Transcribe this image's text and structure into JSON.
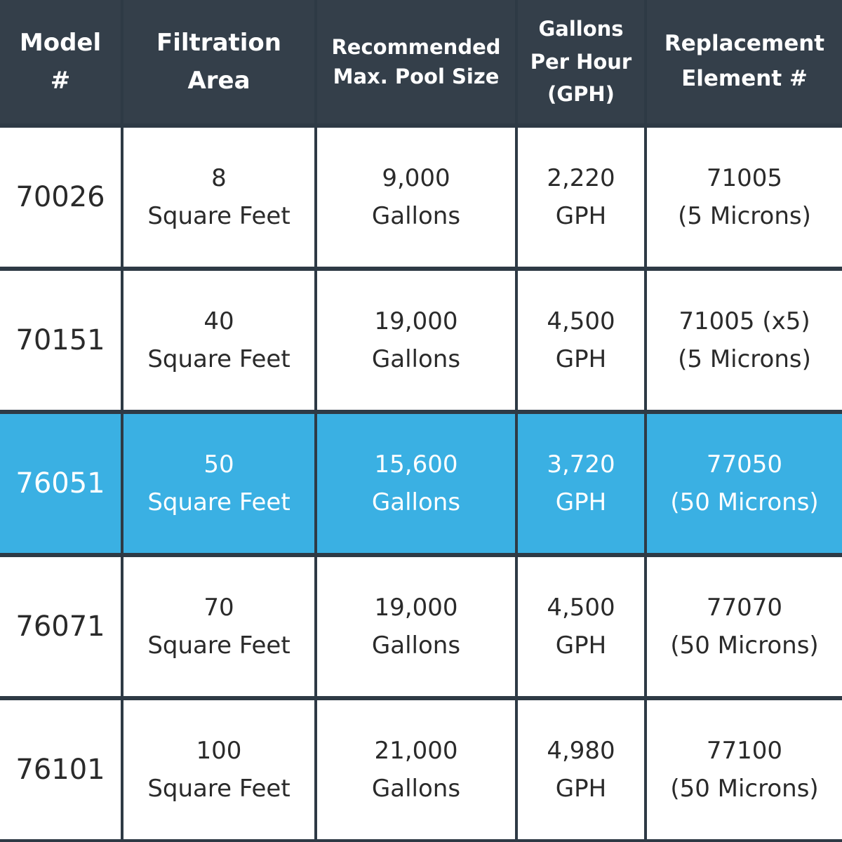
{
  "colors": {
    "header_bg": "#343f4a",
    "border": "#2e3a45",
    "highlight": "#3ab0e3",
    "cell_bg": "#ffffff",
    "text": "#2a2a2a"
  },
  "headers": [
    {
      "line1": "Model",
      "line2": "#"
    },
    {
      "line1": "Filtration",
      "line2": "Area"
    },
    {
      "line1": "Recommended",
      "line2": "Max. Pool Size"
    },
    {
      "line1": "Gallons",
      "line2": "Per Hour",
      "line3": "(GPH)"
    },
    {
      "line1": "Replacement",
      "line2": "Element #"
    }
  ],
  "rows": [
    {
      "model": "70026",
      "area": {
        "value": "8",
        "unit": "Square Feet"
      },
      "pool": {
        "value": "9,000",
        "unit": "Gallons"
      },
      "gph": {
        "value": "2,220",
        "unit": "GPH"
      },
      "element": {
        "value": "71005",
        "note": "(5 Microns)"
      },
      "highlighted": false
    },
    {
      "model": "70151",
      "area": {
        "value": "40",
        "unit": "Square Feet"
      },
      "pool": {
        "value": "19,000",
        "unit": "Gallons"
      },
      "gph": {
        "value": "4,500",
        "unit": "GPH"
      },
      "element": {
        "value": "71005 (x5)",
        "note": "(5 Microns)"
      },
      "highlighted": false
    },
    {
      "model": "76051",
      "area": {
        "value": "50",
        "unit": "Square Feet"
      },
      "pool": {
        "value": "15,600",
        "unit": "Gallons"
      },
      "gph": {
        "value": "3,720",
        "unit": "GPH"
      },
      "element": {
        "value": "77050",
        "note": "(50 Microns)"
      },
      "highlighted": true
    },
    {
      "model": "76071",
      "area": {
        "value": "70",
        "unit": "Square Feet"
      },
      "pool": {
        "value": "19,000",
        "unit": "Gallons"
      },
      "gph": {
        "value": "4,500",
        "unit": "GPH"
      },
      "element": {
        "value": "77070",
        "note": "(50 Microns)"
      },
      "highlighted": false
    },
    {
      "model": "76101",
      "area": {
        "value": "100",
        "unit": "Square Feet"
      },
      "pool": {
        "value": "21,000",
        "unit": "Gallons"
      },
      "gph": {
        "value": "4,980",
        "unit": "GPH"
      },
      "element": {
        "value": "77100",
        "note": "(50 Microns)"
      },
      "highlighted": false
    }
  ]
}
